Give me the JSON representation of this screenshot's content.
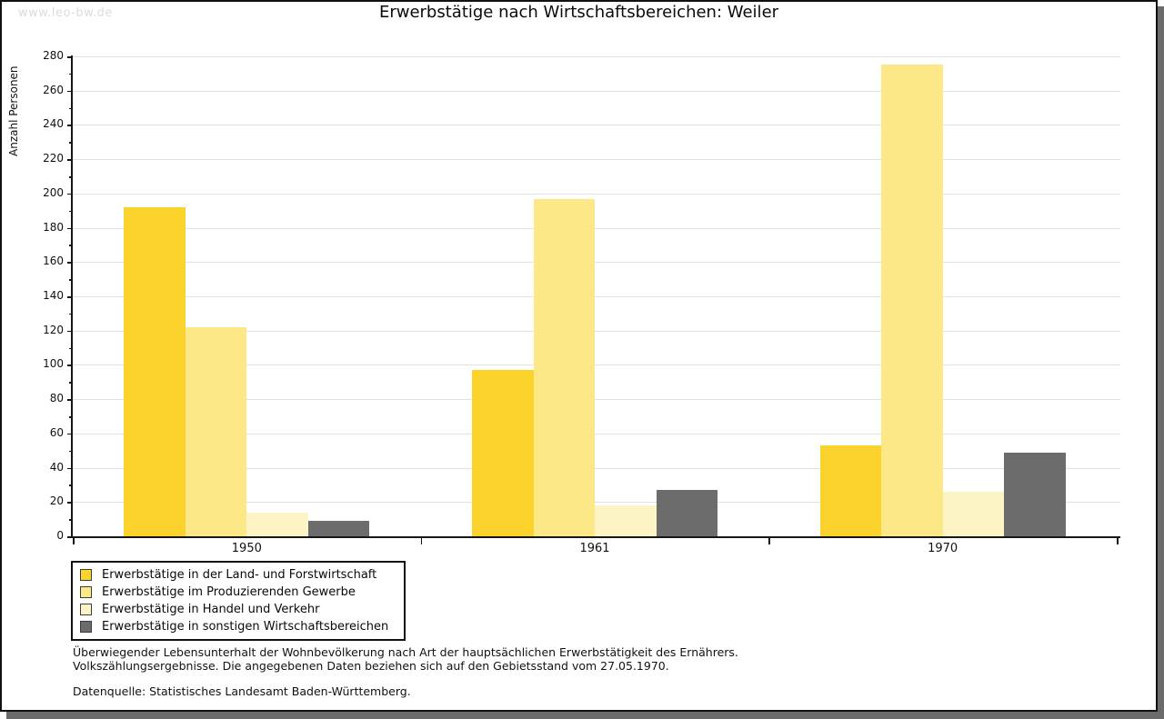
{
  "watermark": "www.leo-bw.de",
  "chart_data": {
    "type": "bar",
    "title": "Erwerbstätige nach Wirtschaftsbereichen: Weiler",
    "xlabel": "",
    "ylabel": "Anzahl Personen",
    "ylim": [
      0,
      280
    ],
    "ytick_step": 20,
    "yminor_step": 10,
    "grid": true,
    "legend_position": "bottom-left",
    "categories": [
      "1950",
      "1961",
      "1970"
    ],
    "series": [
      {
        "name": "Erwerbstätige in der Land- und Forstwirtschaft",
        "color": "#fcd32c",
        "values": [
          192,
          97,
          53
        ]
      },
      {
        "name": "Erwerbstätige im Produzierenden Gewerbe",
        "color": "#fce886",
        "values": [
          122,
          197,
          275
        ]
      },
      {
        "name": "Erwerbstätige in Handel und Verkehr",
        "color": "#fcf4c5",
        "values": [
          14,
          18,
          26
        ]
      },
      {
        "name": "Erwerbstätige in sonstigen Wirtschaftsbereichen",
        "color": "#6c6c6c",
        "values": [
          9,
          27,
          49
        ]
      }
    ]
  },
  "footnote": {
    "line1": "Überwiegender Lebensunterhalt der Wohnbevölkerung nach Art der hauptsächlichen Erwerbstätigkeit des Ernährers.",
    "line2": "Volkszählungsergebnisse. Die angegebenen Daten beziehen sich auf den Gebietsstand vom 27.05.1970.",
    "source": "Datenquelle: Statistisches Landesamt Baden-Württemberg."
  }
}
